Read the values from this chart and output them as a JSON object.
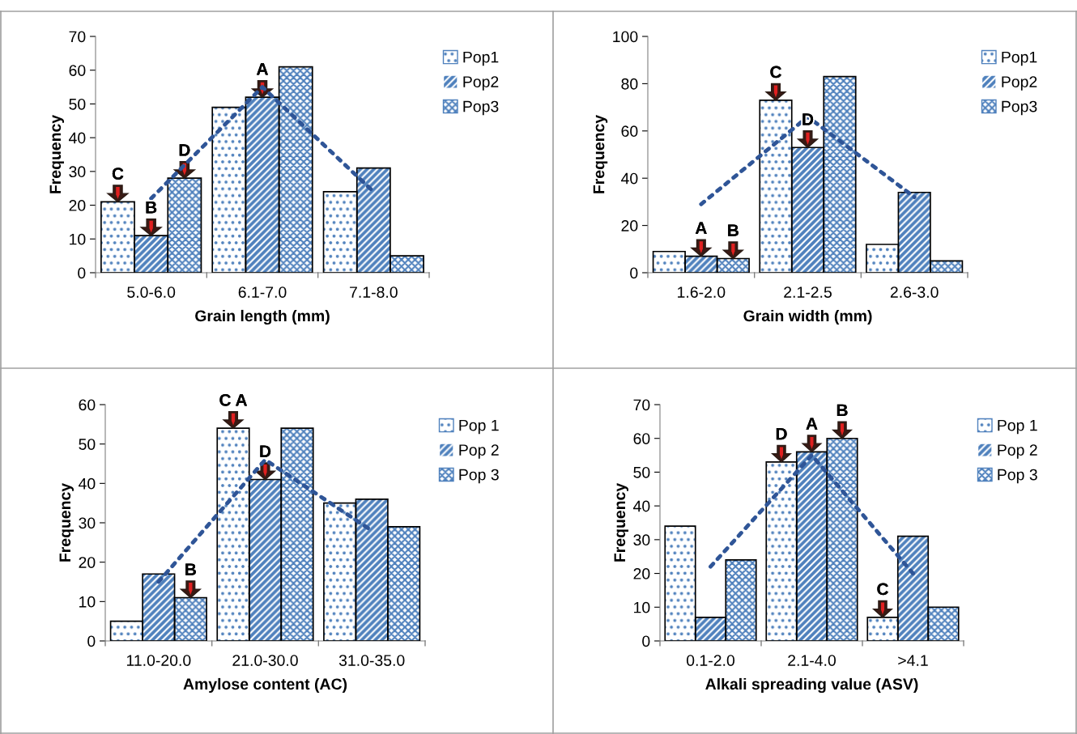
{
  "chart_data": [
    {
      "type": "bar",
      "xlabel": "Grain length (mm)",
      "ylabel": "Frequency",
      "categories": [
        "5.0-6.0",
        "6.1-7.0",
        "7.1-8.0"
      ],
      "ylim": [
        0,
        70
      ],
      "yticks": [
        0,
        10,
        20,
        30,
        40,
        50,
        60,
        70
      ],
      "legend": "right",
      "grid": false,
      "series": [
        {
          "name": "Pop1",
          "color": "#ffffff",
          "values": [
            21,
            49,
            24
          ],
          "value_labels": [
            "C",
            null,
            null
          ]
        },
        {
          "name": "Pop2",
          "color": "#4f81bd",
          "values": [
            11,
            52,
            31
          ],
          "value_labels": [
            "B",
            "A",
            null
          ]
        },
        {
          "name": "Pop3",
          "color": "#4f81bd",
          "values": [
            28,
            61,
            5
          ],
          "value_labels": [
            "D",
            null,
            null
          ]
        },
        {
          "type": "line",
          "color": "#2f5597",
          "line_style": "dotted",
          "values": [
            22,
            55,
            24
          ]
        }
      ]
    },
    {
      "type": "bar",
      "xlabel": "Grain width (mm)",
      "ylabel": "Frequency",
      "categories": [
        "1.6-2.0",
        "2.1-2.5",
        "2.6-3.0"
      ],
      "ylim": [
        0,
        100
      ],
      "yticks": [
        0,
        20,
        40,
        60,
        80,
        100
      ],
      "legend": "right",
      "grid": false,
      "series": [
        {
          "name": "Pop1",
          "color": "#ffffff",
          "values": [
            9,
            73,
            12
          ],
          "value_labels": [
            null,
            "C",
            null
          ]
        },
        {
          "name": "Pop2",
          "color": "#4f81bd",
          "values": [
            7,
            53,
            34
          ],
          "value_labels": [
            "A",
            "D",
            null
          ]
        },
        {
          "name": "Pop3",
          "color": "#4f81bd",
          "values": [
            6,
            83,
            5
          ],
          "value_labels": [
            "B",
            null,
            null
          ]
        },
        {
          "type": "line",
          "color": "#2f5597",
          "line_style": "dotted",
          "values": [
            29,
            66,
            32
          ]
        }
      ]
    },
    {
      "type": "bar",
      "xlabel": "Amylose content (AC)",
      "ylabel": "Frequency",
      "categories": [
        "11.0-20.0",
        "21.0-30.0",
        "31.0-35.0"
      ],
      "ylim": [
        0,
        60
      ],
      "yticks": [
        0,
        10,
        20,
        30,
        40,
        50,
        60
      ],
      "legend": "right",
      "grid": false,
      "series": [
        {
          "name": "Pop 1",
          "color": "#ffffff",
          "values": [
            5,
            54,
            35
          ],
          "value_labels": [
            null,
            "C A",
            null
          ]
        },
        {
          "name": "Pop 2",
          "color": "#4f81bd",
          "values": [
            17,
            41,
            36
          ],
          "value_labels": [
            null,
            "D",
            null
          ]
        },
        {
          "name": "Pop 3",
          "color": "#4f81bd",
          "values": [
            11,
            54,
            29
          ],
          "value_labels": [
            "B",
            null,
            null
          ]
        },
        {
          "type": "line",
          "color": "#2f5597",
          "line_style": "dotted",
          "values": [
            15,
            46,
            28
          ]
        }
      ]
    },
    {
      "type": "bar",
      "xlabel": "Alkali spreading value (ASV)",
      "ylabel": "Frequency",
      "categories": [
        "0.1-2.0",
        "2.1-4.0",
        ">4.1"
      ],
      "ylim": [
        0,
        70
      ],
      "yticks": [
        0,
        10,
        20,
        30,
        40,
        50,
        60,
        70
      ],
      "legend": "right",
      "grid": false,
      "series": [
        {
          "name": "Pop 1",
          "color": "#ffffff",
          "values": [
            34,
            53,
            7
          ],
          "value_labels": [
            null,
            "D",
            "C"
          ]
        },
        {
          "name": "Pop 2",
          "color": "#4f81bd",
          "values": [
            7,
            56,
            31
          ],
          "value_labels": [
            null,
            "A",
            null
          ]
        },
        {
          "name": "Pop 3",
          "color": "#4f81bd",
          "values": [
            24,
            60,
            10
          ],
          "value_labels": [
            null,
            "B",
            null
          ]
        },
        {
          "type": "line",
          "color": "#2f5597",
          "line_style": "dotted",
          "values": [
            22,
            55,
            20
          ]
        }
      ]
    }
  ]
}
